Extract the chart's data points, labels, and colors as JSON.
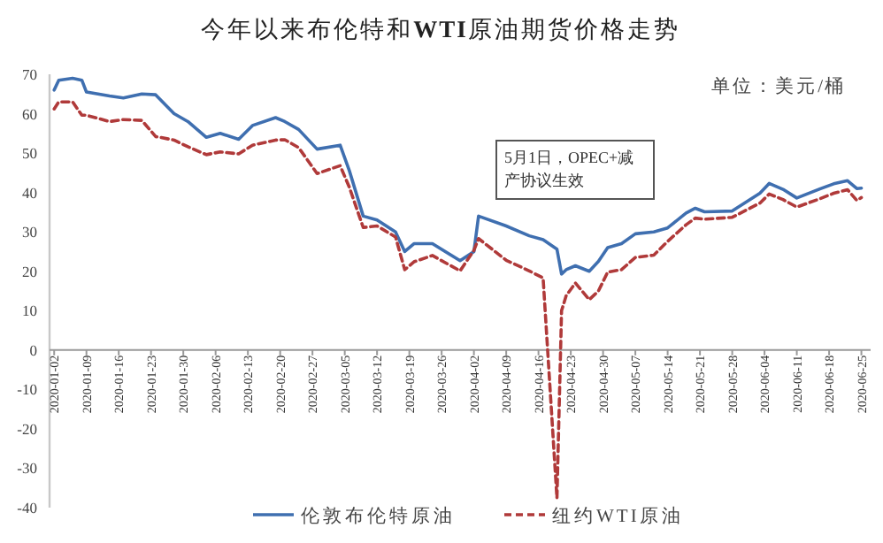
{
  "chart_data": {
    "type": "line",
    "title": "今年以来布伦特和**WTI**原油期货价格走势",
    "annotations": [
      "单位：美元/桶",
      "5月1日，OPEC+减产协议生效"
    ],
    "xlim": [
      "2020-01-01",
      "2020-06-27"
    ],
    "ylim": [
      -40,
      70
    ],
    "yticks": [
      -40,
      -30,
      -20,
      -10,
      0,
      10,
      20,
      30,
      40,
      50,
      60,
      70
    ],
    "xticks": [
      "2020-01-02",
      "2020-01-09",
      "2020-01-16",
      "2020-01-23",
      "2020-01-30",
      "2020-02-06",
      "2020-02-13",
      "2020-02-20",
      "2020-02-27",
      "2020-03-05",
      "2020-03-12",
      "2020-03-19",
      "2020-03-26",
      "2020-04-02",
      "2020-04-09",
      "2020-04-16",
      "2020-04-23",
      "2020-04-30",
      "2020-05-07",
      "2020-05-14",
      "2020-05-21",
      "2020-05-28",
      "2020-06-04",
      "2020-06-11",
      "2020-06-18",
      "2020-06-25"
    ],
    "grid": false,
    "legend": "bottom",
    "marker": "none",
    "x": [
      "2020-01-02",
      "2020-01-03",
      "2020-01-06",
      "2020-01-08",
      "2020-01-09",
      "2020-01-14",
      "2020-01-17",
      "2020-01-21",
      "2020-01-24",
      "2020-01-28",
      "2020-01-31",
      "2020-02-04",
      "2020-02-07",
      "2020-02-11",
      "2020-02-14",
      "2020-02-19",
      "2020-02-21",
      "2020-02-24",
      "2020-02-28",
      "2020-03-04",
      "2020-03-06",
      "2020-03-09",
      "2020-03-12",
      "2020-03-16",
      "2020-03-18",
      "2020-03-20",
      "2020-03-24",
      "2020-03-30",
      "2020-04-02",
      "2020-04-03",
      "2020-04-09",
      "2020-04-14",
      "2020-04-17",
      "2020-04-20",
      "2020-04-21",
      "2020-04-22",
      "2020-04-24",
      "2020-04-27",
      "2020-04-29",
      "2020-05-01",
      "2020-05-04",
      "2020-05-07",
      "2020-05-11",
      "2020-05-14",
      "2020-05-18",
      "2020-05-20",
      "2020-05-22",
      "2020-05-28",
      "2020-06-03",
      "2020-06-05",
      "2020-06-08",
      "2020-06-11",
      "2020-06-16",
      "2020-06-19",
      "2020-06-22",
      "2020-06-24",
      "2020-06-25"
    ],
    "series": [
      {
        "name": "伦敦布伦特原油",
        "color": "#3f6fb0",
        "line_style": "solid",
        "values": [
          66,
          68.5,
          69,
          68.5,
          65.5,
          64.5,
          64,
          65,
          64.8,
          60,
          58,
          54,
          55,
          53.5,
          57,
          59,
          58,
          56,
          51,
          52,
          45.5,
          34,
          33,
          30,
          25,
          27,
          27,
          22.7,
          25,
          34,
          31.5,
          29,
          28,
          25.6,
          19.3,
          20.4,
          21.4,
          20,
          22.5,
          26,
          27,
          29.5,
          30,
          31,
          34.8,
          36,
          35.1,
          35.3,
          39.8,
          42.3,
          40.8,
          38.6,
          40.9,
          42.2,
          43,
          41,
          41.1
        ]
      },
      {
        "name": "纽约WTI原油",
        "color": "#b03a3a",
        "line_style": "dashed",
        "values": [
          61.2,
          63,
          63,
          59.6,
          59.6,
          58,
          58.5,
          58.3,
          54.2,
          53.3,
          51.6,
          49.6,
          50.3,
          49.8,
          52,
          53.3,
          53.4,
          51.4,
          44.8,
          46.8,
          41.3,
          31.1,
          31.5,
          28.7,
          20.4,
          22.4,
          24,
          20.1,
          25.3,
          28.3,
          22.8,
          20.1,
          18.3,
          -37.6,
          10,
          13.8,
          17,
          12.8,
          15,
          19.8,
          20.4,
          23.5,
          24.1,
          27.6,
          31.8,
          33.5,
          33.2,
          33.7,
          37.3,
          39.6,
          38.2,
          36.3,
          38.4,
          39.8,
          40.7,
          38,
          38.7
        ]
      }
    ]
  }
}
